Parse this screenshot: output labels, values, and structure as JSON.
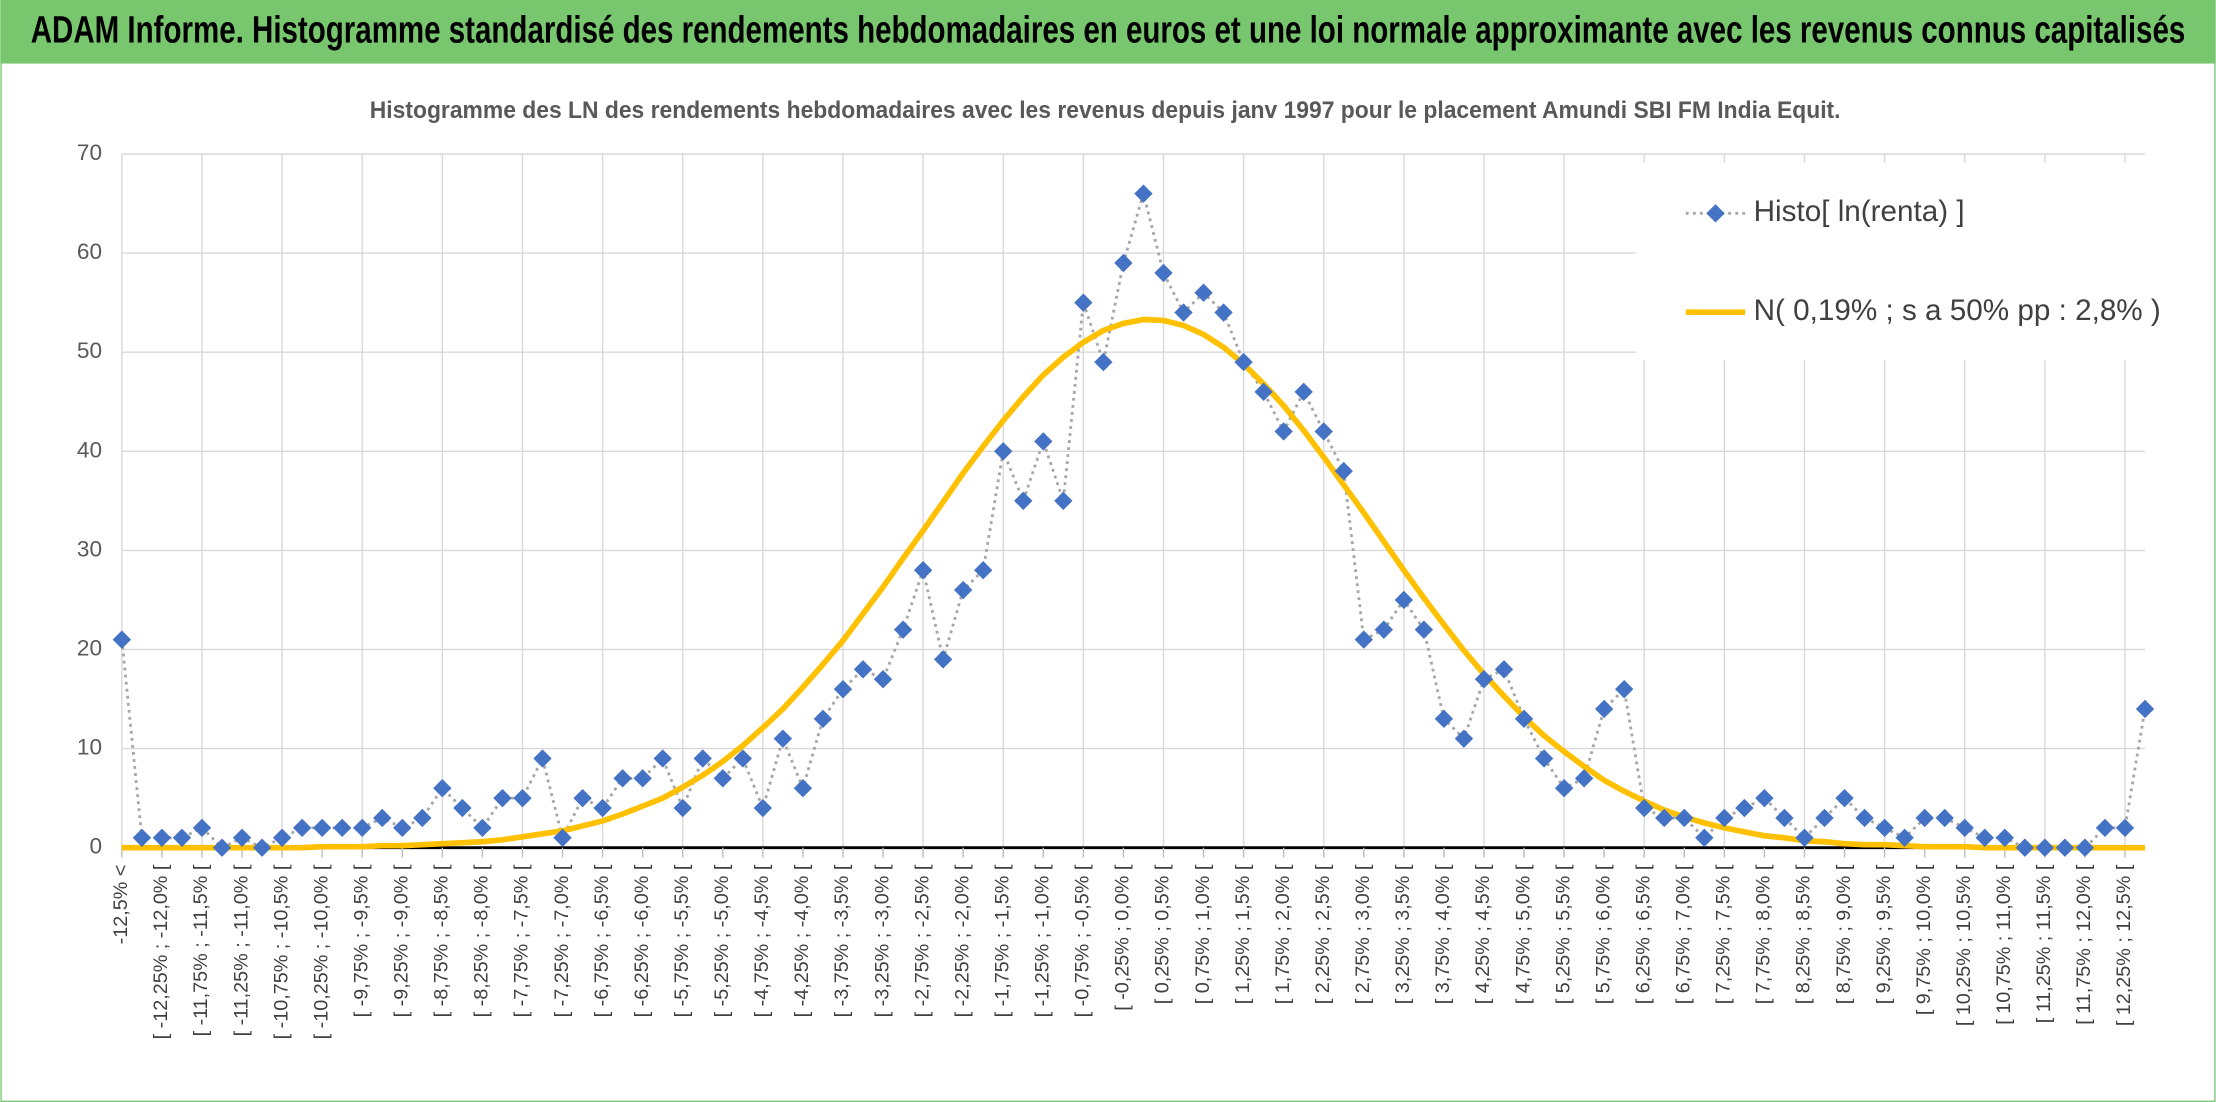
{
  "chart_data": {
    "type": "line",
    "title": "ADAM Informe. Histogramme standardisé des rendements hebdomadaires en euros et une loi normale approximante avec les revenus connus capitalisés",
    "subtitle": "Histogramme des LN des rendements hebdomadaires avec les revenus depuis janv 1997 pour le placement Amundi SBI FM India Equit.",
    "categories": [
      "-12,5% <",
      null,
      "[ -12,25% ; -12,0% [",
      null,
      "[ -11,75% ; -11,5% [",
      null,
      "[ -11,25% ; -11,0% [",
      null,
      "[ -10,75% ; -10,5% [",
      null,
      "[ -10,25% ; -10,0% [",
      null,
      "[ -9,75% ; -9,5% [",
      null,
      "[ -9,25% ; -9,0% [",
      null,
      "[ -8,75% ; -8,5% [",
      null,
      "[ -8,25% ; -8,0% [",
      null,
      "[ -7,75% ; -7,5% [",
      null,
      "[ -7,25% ; -7,0% [",
      null,
      "[ -6,75% ; -6,5% [",
      null,
      "[ -6,25% ; -6,0% [",
      null,
      "[ -5,75% ; -5,5% [",
      null,
      "[ -5,25% ; -5,0% [",
      null,
      "[ -4,75% ; -4,5% [",
      null,
      "[ -4,25% ; -4,0% [",
      null,
      "[ -3,75% ; -3,5% [",
      null,
      "[ -3,25% ; -3,0% [",
      null,
      "[ -2,75% ; -2,5% [",
      null,
      "[ -2,25% ; -2,0% [",
      null,
      "[ -1,75% ; -1,5% [",
      null,
      "[ -1,25% ; -1,0% [",
      null,
      "[ -0,75% ; -0,5% [",
      null,
      "[ -0,25% ; 0,0% [",
      null,
      "[ 0,25% ; 0,5% [",
      null,
      "[ 0,75% ; 1,0% [",
      null,
      "[ 1,25% ; 1,5% [",
      null,
      "[ 1,75% ; 2,0% [",
      null,
      "[ 2,25% ; 2,5% [",
      null,
      "[ 2,75% ; 3,0% [",
      null,
      "[ 3,25% ; 3,5% [",
      null,
      "[ 3,75% ; 4,0% [",
      null,
      "[ 4,25% ; 4,5% [",
      null,
      "[ 4,75% ; 5,0% [",
      null,
      "[ 5,25% ; 5,5% [",
      null,
      "[ 5,75% ; 6,0% [",
      null,
      "[ 6,25% ; 6,5% [",
      null,
      "[ 6,75% ; 7,0% [",
      null,
      "[ 7,25% ; 7,5% [",
      null,
      "[ 7,75% ; 8,0% [",
      null,
      "[ 8,25% ; 8,5% [",
      null,
      "[ 8,75% ; 9,0% [",
      null,
      "[ 9,25% ; 9,5% [",
      null,
      "[ 9,75% ; 10,0% [",
      null,
      "[ 10,25% ; 10,5% [",
      null,
      "[ 10,75% ; 11,0% [",
      null,
      "[ 11,25% ; 11,5% [",
      null,
      "[ 11,75% ; 12,0% [",
      null,
      "[ 12,25% ; 12,5% [",
      null
    ],
    "series": [
      {
        "name": "Histo[ ln(renta) ]",
        "color": "#4472c4",
        "line_color": "#a6a6a6",
        "marker": "diamond",
        "values": [
          21,
          1,
          1,
          1,
          2,
          0,
          1,
          0,
          1,
          2,
          2,
          2,
          2,
          3,
          2,
          3,
          6,
          4,
          2,
          5,
          5,
          9,
          1,
          5,
          4,
          7,
          7,
          9,
          4,
          9,
          7,
          9,
          4,
          11,
          6,
          13,
          16,
          18,
          17,
          22,
          28,
          19,
          26,
          28,
          40,
          35,
          41,
          35,
          55,
          49,
          59,
          66,
          58,
          54,
          56,
          54,
          49,
          46,
          42,
          46,
          42,
          38,
          21,
          22,
          25,
          22,
          13,
          11,
          17,
          18,
          13,
          9,
          6,
          7,
          14,
          16,
          4,
          3,
          3,
          1,
          3,
          4,
          5,
          3,
          1,
          3,
          5,
          3,
          2,
          1,
          3,
          3,
          2,
          1,
          1,
          0,
          0,
          0,
          0,
          2,
          2,
          14
        ]
      },
      {
        "name": "N( 0,19% ; s a 50% pp : 2,8% )",
        "color": "#ffc000",
        "values": [
          0,
          0,
          0,
          0,
          0,
          0,
          0,
          0,
          0,
          0,
          0.1,
          0.1,
          0.1,
          0.2,
          0.2,
          0.3,
          0.4,
          0.5,
          0.6,
          0.8,
          1.1,
          1.4,
          1.7,
          2.2,
          2.7,
          3.4,
          4.2,
          5.0,
          6.1,
          7.3,
          8.7,
          10.3,
          12.1,
          14.0,
          16.2,
          18.5,
          20.9,
          23.6,
          26.3,
          29.2,
          32.0,
          34.9,
          37.8,
          40.5,
          43.1,
          45.5,
          47.7,
          49.5,
          51.0,
          52.2,
          52.9,
          53.3,
          53.2,
          52.7,
          51.8,
          50.5,
          48.8,
          46.8,
          44.6,
          42.1,
          39.4,
          36.6,
          33.8,
          30.9,
          28.0,
          25.2,
          22.5,
          19.9,
          17.5,
          15.3,
          13.2,
          11.3,
          9.7,
          8.2,
          6.8,
          5.7,
          4.7,
          3.8,
          3.1,
          2.5,
          2.0,
          1.6,
          1.2,
          1.0,
          0.7,
          0.6,
          0.4,
          0.3,
          0.3,
          0.2,
          0.1,
          0.1,
          0.1,
          0,
          0,
          0,
          0,
          0,
          0,
          0,
          0,
          0
        ]
      }
    ],
    "ylim": [
      0,
      70
    ],
    "yticks": [
      0,
      10,
      20,
      30,
      40,
      50,
      60,
      70
    ],
    "grid": true,
    "legend": "upper right"
  }
}
